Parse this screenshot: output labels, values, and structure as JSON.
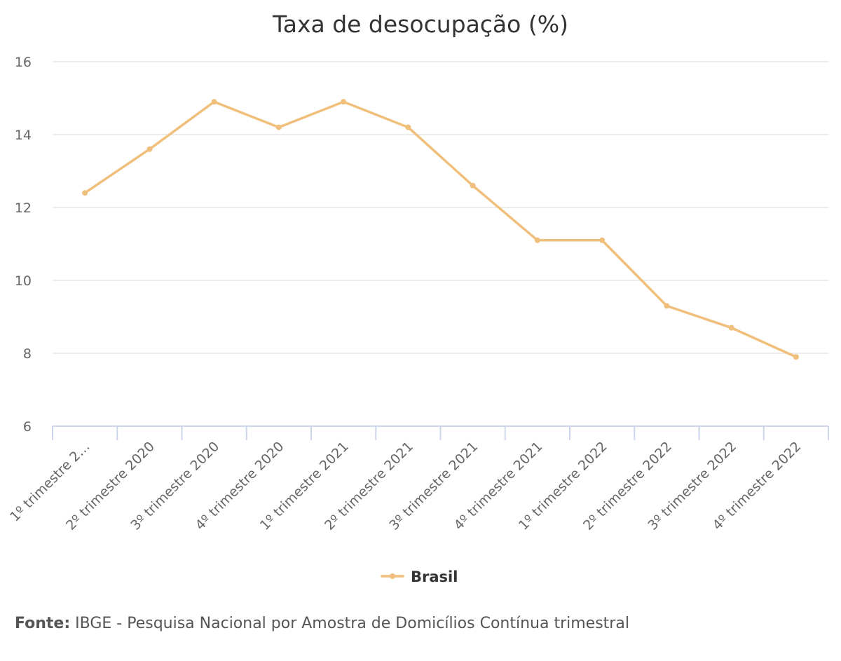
{
  "chart_data": {
    "type": "line",
    "title": "Taxa de desocupação (%)",
    "categories": [
      "1º trimestre 2…",
      "2º trimestre 2020",
      "3º trimestre 2020",
      "4º trimestre 2020",
      "1º trimestre 2021",
      "2º trimestre 2021",
      "3º trimestre 2021",
      "4º trimestre 2021",
      "1º trimestre 2022",
      "2º trimestre 2022",
      "3º trimestre 2022",
      "4º trimestre 2022"
    ],
    "series": [
      {
        "name": "Brasil",
        "color": "#f0bf7c",
        "values": [
          12.4,
          13.6,
          14.9,
          14.2,
          14.9,
          14.2,
          12.6,
          11.1,
          11.1,
          9.3,
          8.7,
          7.9
        ]
      }
    ],
    "ylim": [
      6,
      16
    ],
    "yticks": [
      6,
      8,
      10,
      12,
      14,
      16
    ],
    "grid": true,
    "legend": "bottom-center"
  },
  "source": {
    "label": "Fonte:",
    "text": " IBGE - Pesquisa Nacional por Amostra de Domicílios Contínua trimestral"
  }
}
